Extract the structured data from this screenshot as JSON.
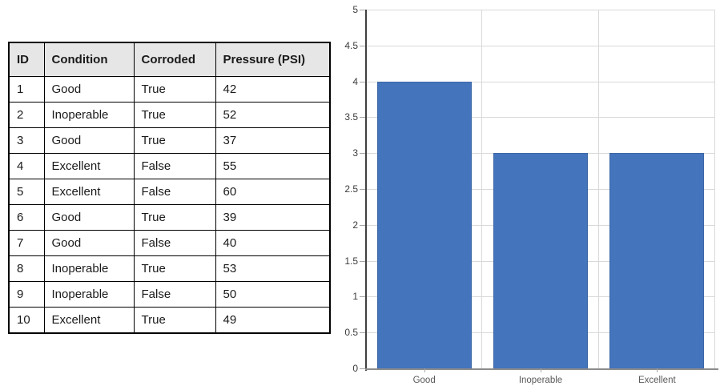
{
  "table": {
    "headers": [
      "ID",
      "Condition",
      "Corroded",
      "Pressure (PSI)"
    ],
    "rows": [
      [
        "1",
        "Good",
        "True",
        "42"
      ],
      [
        "2",
        "Inoperable",
        "True",
        "52"
      ],
      [
        "3",
        "Good",
        "True",
        "37"
      ],
      [
        "4",
        "Excellent",
        "False",
        "55"
      ],
      [
        "5",
        "Excellent",
        "False",
        "60"
      ],
      [
        "6",
        "Good",
        "True",
        "39"
      ],
      [
        "7",
        "Good",
        "False",
        "40"
      ],
      [
        "8",
        "Inoperable",
        "True",
        "53"
      ],
      [
        "9",
        "Inoperable",
        "False",
        "50"
      ],
      [
        "10",
        "Excellent",
        "True",
        "49"
      ]
    ]
  },
  "chart_data": {
    "type": "bar",
    "title": "",
    "xlabel": "",
    "ylabel": "",
    "categories": [
      "Good",
      "Inoperable",
      "Excellent"
    ],
    "values": [
      4,
      3,
      3
    ],
    "ylim": [
      0,
      5
    ],
    "ytick_step": 0.5,
    "yticks": [
      0,
      0.5,
      1,
      1.5,
      2,
      2.5,
      3,
      3.5,
      4,
      4.5,
      5
    ],
    "grid": true,
    "legend_position": "none",
    "colors": {
      "bar_fill": "#4374bc",
      "bar_border": "#3b66a5",
      "gridline": "#d9d9d9",
      "y_axis": "#404040",
      "x_axis": "#8c8c8c",
      "tick": "#a6a6a6",
      "y_tick_label": "#3d3d3d",
      "x_tick_label": "#595959"
    }
  }
}
